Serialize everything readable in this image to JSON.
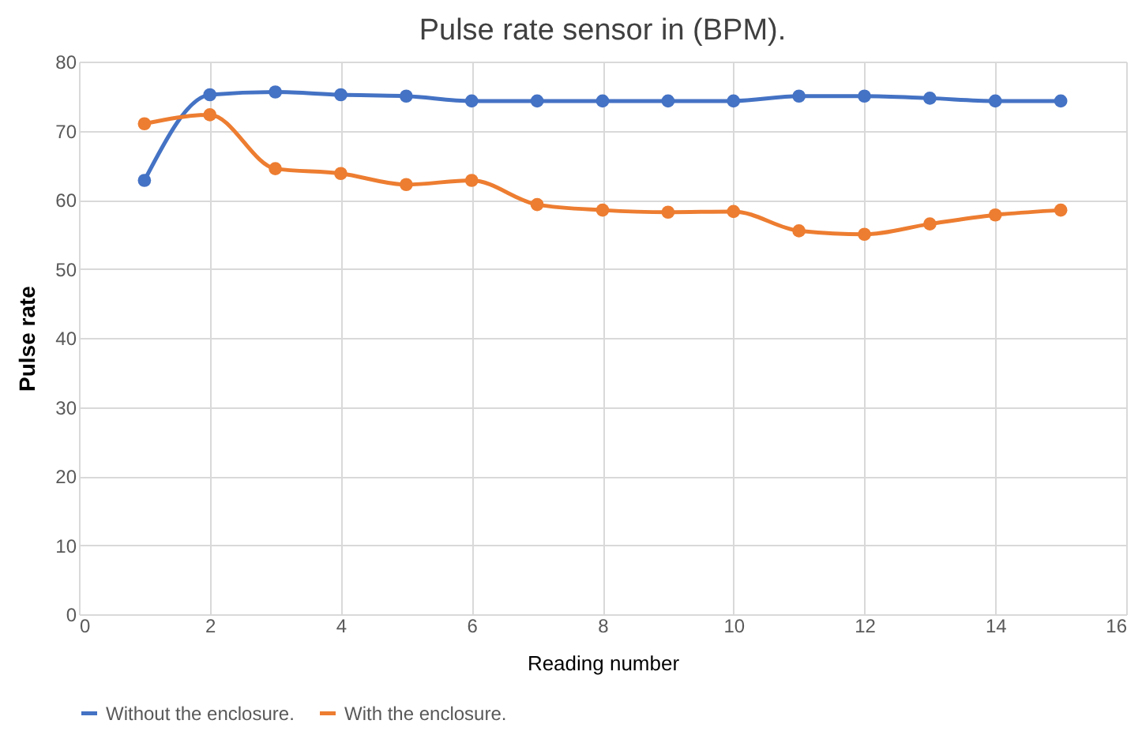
{
  "chart_data": {
    "type": "line",
    "title": "Pulse rate sensor in (BPM).",
    "xlabel": "Reading number",
    "ylabel": "Pulse rate",
    "x": [
      1,
      2,
      3,
      4,
      5,
      6,
      7,
      8,
      9,
      10,
      11,
      12,
      13,
      14,
      15
    ],
    "series": [
      {
        "name": "Without the enclosure.",
        "color": "#4472c4",
        "values": [
          62.8,
          75.2,
          75.6,
          75.2,
          75,
          74.3,
          74.3,
          74.3,
          74.3,
          74.3,
          75,
          75,
          74.7,
          74.3,
          74.3
        ]
      },
      {
        "name": "With the enclosure.",
        "color": "#ed7d31",
        "values": [
          71,
          72.3,
          64.5,
          63.8,
          62.2,
          62.8,
          59.3,
          58.5,
          58.2,
          58.3,
          55.5,
          55,
          56.5,
          57.8,
          58.5
        ]
      }
    ],
    "xlim": [
      0,
      16
    ],
    "xticks": [
      0,
      2,
      4,
      6,
      8,
      10,
      12,
      14,
      16
    ],
    "ylim": [
      0,
      80
    ],
    "yticks": [
      0,
      10,
      20,
      30,
      40,
      50,
      60,
      70,
      80
    ],
    "grid": true,
    "legend": "bottom",
    "marker": "circle",
    "line_style": "solid"
  }
}
